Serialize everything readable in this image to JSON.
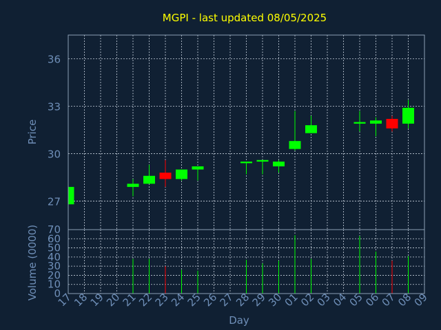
{
  "title": "MGPI - last updated 08/05/2025",
  "colors": {
    "background": "#102033",
    "title": "#ffff00",
    "axis_text": "#6f8fb8",
    "frame": "#8da0b6",
    "grid": "#c8d2de",
    "up": "#00ff00",
    "down": "#ff0000"
  },
  "chart_data": [
    {
      "type": "candlestick",
      "title": "MGPI - last updated 08/05/2025",
      "ylabel": "Price",
      "ylim": [
        25.2,
        37.5
      ],
      "yticks": [
        27,
        30,
        33,
        36
      ],
      "grid": true,
      "x": [
        "17",
        "18",
        "19",
        "20",
        "21",
        "22",
        "23",
        "24",
        "25",
        "26",
        "27",
        "28",
        "29",
        "30",
        "01",
        "02",
        "03",
        "04",
        "05",
        "06",
        "07",
        "08",
        "09"
      ],
      "series": [
        {
          "x": "17",
          "open": 26.8,
          "high": 27.9,
          "low": 26.8,
          "close": 27.9
        },
        {
          "x": "21",
          "open": 27.9,
          "high": 28.4,
          "low": 27.3,
          "close": 28.1
        },
        {
          "x": "22",
          "open": 28.1,
          "high": 29.3,
          "low": 28.1,
          "close": 28.6
        },
        {
          "x": "23",
          "open": 28.8,
          "high": 29.6,
          "low": 27.9,
          "close": 28.4
        },
        {
          "x": "24",
          "open": 28.4,
          "high": 29.0,
          "low": 28.3,
          "close": 29.0
        },
        {
          "x": "25",
          "open": 29.0,
          "high": 29.2,
          "low": 28.3,
          "close": 29.2
        },
        {
          "x": "28",
          "open": 29.4,
          "high": 29.5,
          "low": 28.7,
          "close": 29.5
        },
        {
          "x": "29",
          "open": 29.5,
          "high": 29.6,
          "low": 28.7,
          "close": 29.6
        },
        {
          "x": "30",
          "open": 29.2,
          "high": 29.6,
          "low": 28.8,
          "close": 29.5
        },
        {
          "x": "01",
          "open": 30.3,
          "high": 32.7,
          "low": 30.2,
          "close": 30.8
        },
        {
          "x": "02",
          "open": 31.3,
          "high": 32.4,
          "low": 31.3,
          "close": 31.8
        },
        {
          "x": "05",
          "open": 31.9,
          "high": 32.7,
          "low": 31.4,
          "close": 32.0
        },
        {
          "x": "06",
          "open": 31.9,
          "high": 32.3,
          "low": 31.1,
          "close": 32.1
        },
        {
          "x": "07",
          "open": 32.2,
          "high": 32.4,
          "low": 31.4,
          "close": 31.6
        },
        {
          "x": "08",
          "open": 31.9,
          "high": 33.4,
          "low": 31.6,
          "close": 32.9
        }
      ]
    },
    {
      "type": "bar",
      "xlabel": "Day",
      "ylabel": "Volume (0000)",
      "ylim": [
        0,
        70
      ],
      "yticks": [
        0,
        10,
        20,
        30,
        40,
        50,
        60,
        70
      ],
      "grid": true,
      "categories": [
        "17",
        "18",
        "19",
        "20",
        "21",
        "22",
        "23",
        "24",
        "25",
        "26",
        "27",
        "28",
        "29",
        "30",
        "01",
        "02",
        "03",
        "04",
        "05",
        "06",
        "07",
        "08",
        "09"
      ],
      "values": [
        null,
        null,
        null,
        null,
        38,
        38,
        30,
        26,
        25,
        null,
        null,
        37,
        33,
        36,
        64,
        38,
        null,
        null,
        63,
        46,
        36,
        41,
        null
      ],
      "colors": [
        null,
        null,
        null,
        null,
        "up",
        "up",
        "down",
        "up",
        "up",
        null,
        null,
        "up",
        "up",
        "up",
        "up",
        "up",
        null,
        null,
        "up",
        "up",
        "down",
        "up",
        null
      ]
    }
  ]
}
